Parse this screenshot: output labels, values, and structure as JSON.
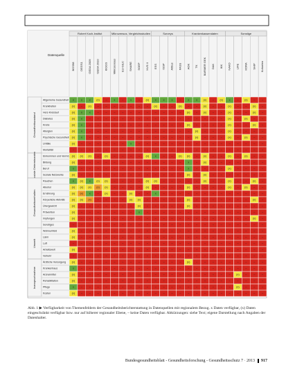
{
  "page": {
    "columns_title": "Datenquelle",
    "column_groups": [
      {
        "label": "Robert Koch-Institut",
        "columns": [
          "BGS98",
          "DEGS1",
          "GEDA 2009",
          "GEDA 2010",
          "KiGGS"
        ]
      },
      {
        "label": "Mikrozensus, Vergleichsstudien",
        "columns": [
          "Mikrozensus",
          "EU-SILC",
          "SHARE",
          "SOEP",
          "NVS II"
        ]
      },
      {
        "label": "Surveys",
        "columns": [
          "ESS",
          "ISSP",
          "Allbus",
          "PASS"
        ]
      },
      {
        "label": "Krankenkassendaten",
        "columns": [
          "AOK",
          "TK",
          "BARMER GEK",
          "DAK",
          "IKK"
        ]
      },
      {
        "label": "Sonstige",
        "columns": [
          "NAKO",
          "LIFE",
          "KORA",
          "SHIP",
          "Kohorten"
        ]
      }
    ],
    "row_groups": [
      {
        "label": "Gesundheitszustand",
        "rows": [
          "Allgemeine Gesundheit",
          "Krankheiten",
          "Herz-Kreislauf",
          "Diabetes",
          "Krebs",
          "Allergien",
          "Psychische Gesundheit",
          "Unfälle",
          "Mortalität"
        ]
      },
      {
        "label": "Soziale Determinanten",
        "rows": [
          "Einkommen und Vermögen",
          "Bildung",
          "Beruf",
          "Soziale Netzwerke"
        ]
      },
      {
        "label": "Gesundheitsverhalten",
        "rows": [
          "Rauchen",
          "Alkohol",
          "Ernährung",
          "Körperliche Aktivität",
          "Übergewicht",
          "Prävention",
          "Impfungen",
          "Sonstiges"
        ]
      },
      {
        "label": "Umwelt",
        "rows": [
          "Wohnumfeld",
          "Lärm",
          "Luft",
          "Arbeitswelt",
          "Verkehr"
        ]
      },
      {
        "label": "Inanspruchnahme",
        "rows": [
          "Ärztliche Versorgung",
          "Krankenhaus",
          "Arzneimittel",
          "Rehabilitation",
          "Pflege",
          "Kosten"
        ]
      }
    ],
    "cells": [
      "GGGYRGRGRYGGGRGGYRYGRYRR",
      "YRYRRRRRRRYRRYRRYRRYRRYR",
      "YGGRRRRRRRRRRRYRYRRYRRYR",
      "YGRRRRRRRRRRRRRRRRRYRYRR",
      "YGRRRRRRRRRRRRYRRRRYRRYR",
      "YGRRRRRRRRRRRRRYRRRYRRRR",
      "YGRRRRRRRRRRRRRYRRRYRYRR",
      "YRRRRRRGRRRRRRRRRRRRRRRR",
      "RRRRRRRRRRRRRRRRRRRRRRRR",
      "YYYRYRRRRYGRRYYRYRRYRYRR",
      "YRRRRRRRRRRRRRGRYRRRRRRR",
      "GRRRRRRRRRRRRRGRRRRYRRRR",
      "YRRRRRRRRRRRRRYRYRRRRRRR",
      "GYGYYRRRRYYRRRRRYRRYRRYR",
      "YYYOYRRRRYRRRRYRRRRYRYRR",
      "YOGRYRRYRRGRRRRRRRRRRRRR",
      "YYORRRRYYRRRRRYRRRRRRRYR",
      "YRRRRRRRYRRRRRYRRRRRRRRR",
      "YRRRRRRRGRRRRRRRRRRRRRRR",
      "YRRRRRRRRRRRRRRRRRRRRRYR",
      "RRRRRRRRRRRRRRRRRRRRRRRR",
      "YRRRRRRRRRRRRRRRRRRRRRRR",
      "YRRRRRRRRRRRRRRRRRRRRRRR",
      "RRRRRRRRRRRRRRRRRRRRRRRR",
      "YRRRRRRRRRRRRRRRRRRRRRRR",
      "RRRRRRRRRRRRRRRRRRRRRRRR",
      "YRRRRRRRRRRRRRYRRRRRRRRR",
      "GRRRRRRRRRRRRRRRRRRRRRRR",
      "YRRRRRRRRRRRRRRRRRRRYRRR",
      "YRRRRRRRRRRRRRRRRRRRRRRR",
      "GRRRRRRRRRRRRRRRRRRRYRRR",
      "YRRRRRRRRRRRRRRRRRRRRRRR"
    ],
    "cell_colors": {
      "G": "#62a83c",
      "Y": "#f2e33c",
      "O": "#ee9b2a",
      "R": "#d5261d"
    },
    "cell_marks": {
      "G": "x",
      "Y": "(x)",
      "O": "(x)",
      "R": "–"
    },
    "caption": "Abb. 1 ▶ Verfügbarkeit von Themenfeldern der Gesundheitsberichterstattung in Datenquellen mit regionalem Bezug. x Daten verfügbar, (x) Daten eingeschränkt verfügbar bzw. nur auf höherer regionaler Ebene, – keine Daten verfügbar. Abkürzungen: siehe Text; eigene Darstellung nach Angaben der Datenhalter.",
    "footer": "Bundesgesundheitsblatt - Gesundheitsforschung - Gesundheitsschutz 7 · 2013",
    "page_number": "917"
  }
}
